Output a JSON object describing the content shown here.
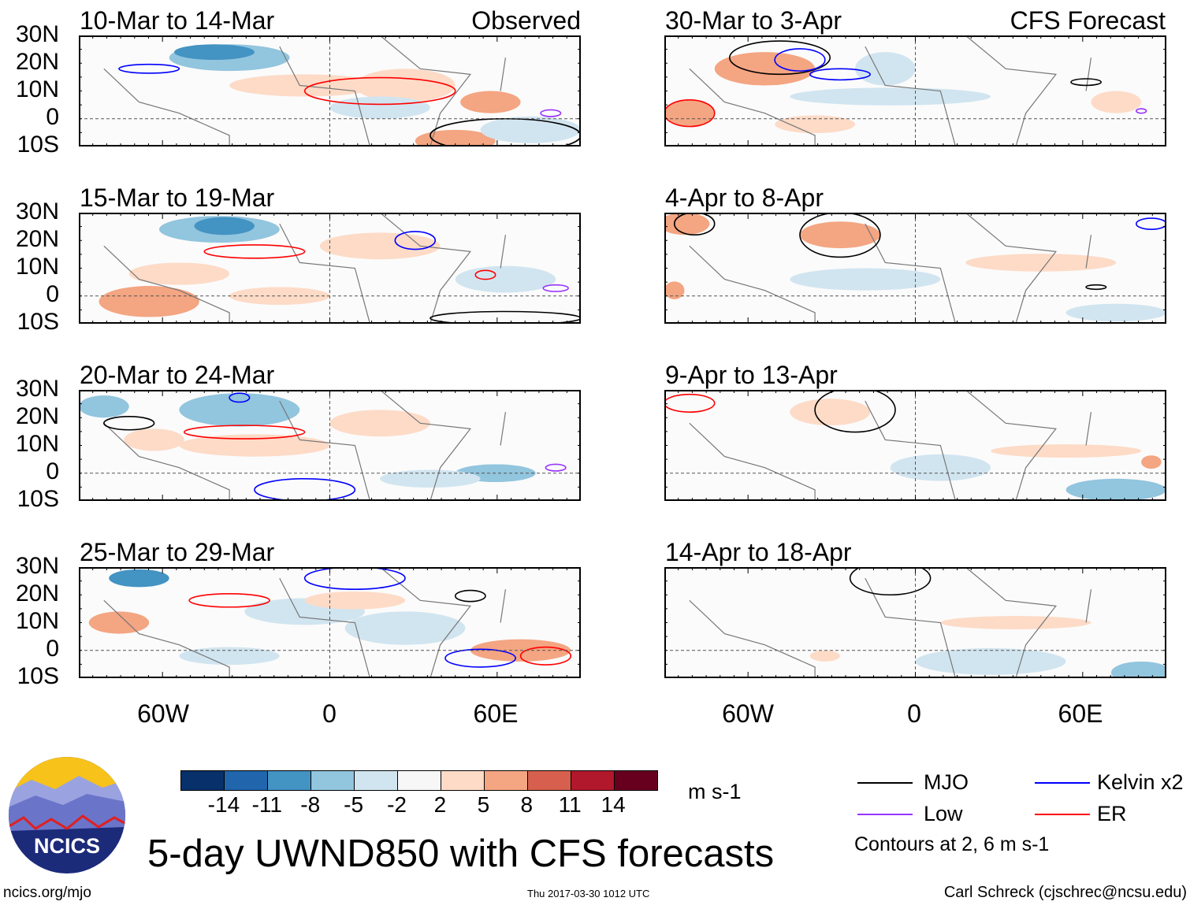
{
  "headers": {
    "observed": "Observed",
    "forecast": "CFS Forecast"
  },
  "panels_observed": [
    {
      "title": "10-Mar to 14-Mar"
    },
    {
      "title": "15-Mar to 19-Mar"
    },
    {
      "title": "20-Mar to 24-Mar"
    },
    {
      "title": "25-Mar to 29-Mar"
    }
  ],
  "panels_forecast": [
    {
      "title": "30-Mar to 3-Apr"
    },
    {
      "title": "4-Apr to 8-Apr"
    },
    {
      "title": "9-Apr to 13-Apr"
    },
    {
      "title": "14-Apr to 18-Apr"
    }
  ],
  "lat_labels": [
    "30N",
    "20N",
    "10N",
    "0",
    "10S"
  ],
  "lon_labels": [
    "60W",
    "0",
    "60E"
  ],
  "colorbar": {
    "colors": [
      "#08306b",
      "#2166ac",
      "#4393c3",
      "#92c5de",
      "#d1e5f0",
      "#f7f7f7",
      "#fddbc7",
      "#f4a582",
      "#d6604d",
      "#b2182b",
      "#67001f"
    ],
    "labels": [
      "-14",
      "-11",
      "-8",
      "-5",
      "-2",
      "2",
      "5",
      "8",
      "11",
      "14"
    ],
    "units": "m s-1"
  },
  "legend": {
    "items": [
      {
        "label": "MJO",
        "color": "#000000"
      },
      {
        "label": "Kelvin x2",
        "color": "#0000ff"
      },
      {
        "label": "Low",
        "color": "#9933ff"
      },
      {
        "label": "ER",
        "color": "#ff0000"
      }
    ],
    "note": "Contours at 2, 6 m s-1"
  },
  "title": "5-day UWND850 with CFS forecasts",
  "logo_text": "NCICS",
  "footer": {
    "url": "ncics.org/mjo",
    "timestamp": "Thu 2017-03-30 1012 UTC",
    "author": "Carl Schreck (cjschrec@ncsu.edu)"
  }
}
